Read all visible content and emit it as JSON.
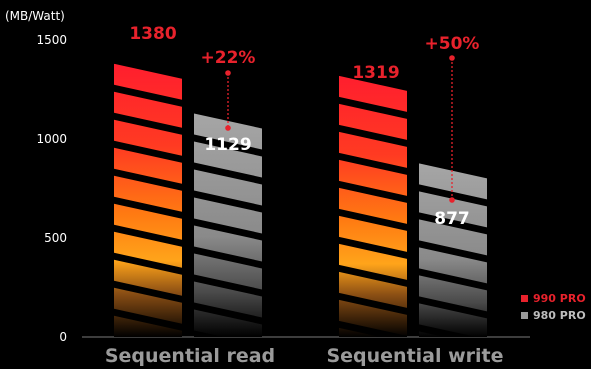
{
  "colors": {
    "background": "#000000",
    "series_990": "#e8222c",
    "series_980": "#9a9a9a",
    "text": "#ffffff",
    "category_text": "#9b9b9b",
    "axis": "#7a7a7a"
  },
  "chart_data": {
    "type": "bar",
    "title": "",
    "xlabel": "",
    "ylabel": "(MB/Watt)",
    "ylim": [
      0,
      1500
    ],
    "yticks": [
      0,
      500,
      1000,
      1500
    ],
    "categories": [
      "Sequential read",
      "Sequential write"
    ],
    "series": [
      {
        "name": "990 PRO",
        "color": "#e8222c",
        "values": [
          1380,
          1319
        ],
        "labels": [
          "1380",
          "1319"
        ]
      },
      {
        "name": "980 PRO",
        "color": "#9a9a9a",
        "values": [
          1129,
          877
        ],
        "labels": [
          "1129",
          "877"
        ]
      }
    ],
    "annotations": [
      "+22%",
      "+50%"
    ],
    "legend_position": "bottom-right",
    "grid": false
  }
}
